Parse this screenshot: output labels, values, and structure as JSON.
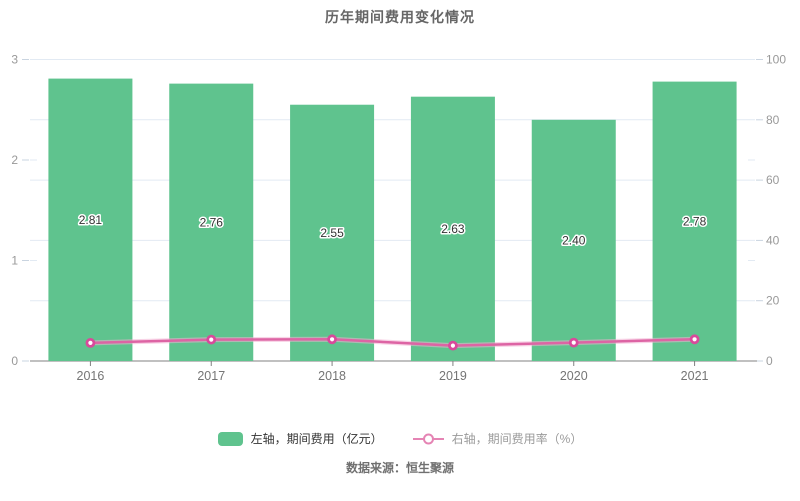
{
  "title": "历年期间费用变化情况",
  "source": "数据来源：恒生聚源",
  "colors": {
    "bar": "#5fc38e",
    "line": "#dd64a4",
    "line_halo": "#f3aed2",
    "marker_stroke": "#d84a9b",
    "marker_fill": "#ffffff",
    "grid": "#e2eaf3",
    "axis": "#808080",
    "tick": "#c9d4e0",
    "y_label": "#999999",
    "x_label": "#757575",
    "bar_label": "#333333",
    "legend_text_bar": "#333333",
    "legend_text_line": "#9a9a9a",
    "legend_line": "#e584b4"
  },
  "chart_data": {
    "type": "bar",
    "subtype": "bar+line combo, dual y-axis",
    "title": "历年期间费用变化情况",
    "categories": [
      "2016",
      "2017",
      "2018",
      "2019",
      "2020",
      "2021"
    ],
    "series": [
      {
        "name": "左轴，期间费用（亿元）",
        "type": "bar",
        "axis": "left",
        "values": [
          2.81,
          2.76,
          2.55,
          2.63,
          2.4,
          2.78
        ],
        "data_labels": [
          "2.81",
          "2.76",
          "2.55",
          "2.63",
          "2.40",
          "2.78"
        ]
      },
      {
        "name": "右轴，期间费用率（%）",
        "type": "line",
        "axis": "right",
        "values": [
          6.0,
          7.1,
          7.2,
          5.1,
          6.1,
          7.2
        ]
      }
    ],
    "left_axis": {
      "min": 0,
      "max": 3,
      "tick_labels": [
        "0",
        "1",
        "2",
        "3"
      ]
    },
    "right_axis": {
      "min": 0,
      "max": 100,
      "tick_labels": [
        "0",
        "20",
        "40",
        "60",
        "80",
        "100"
      ]
    },
    "grid": true,
    "legend_position": "bottom",
    "source_note": "数据来源：恒生聚源"
  }
}
